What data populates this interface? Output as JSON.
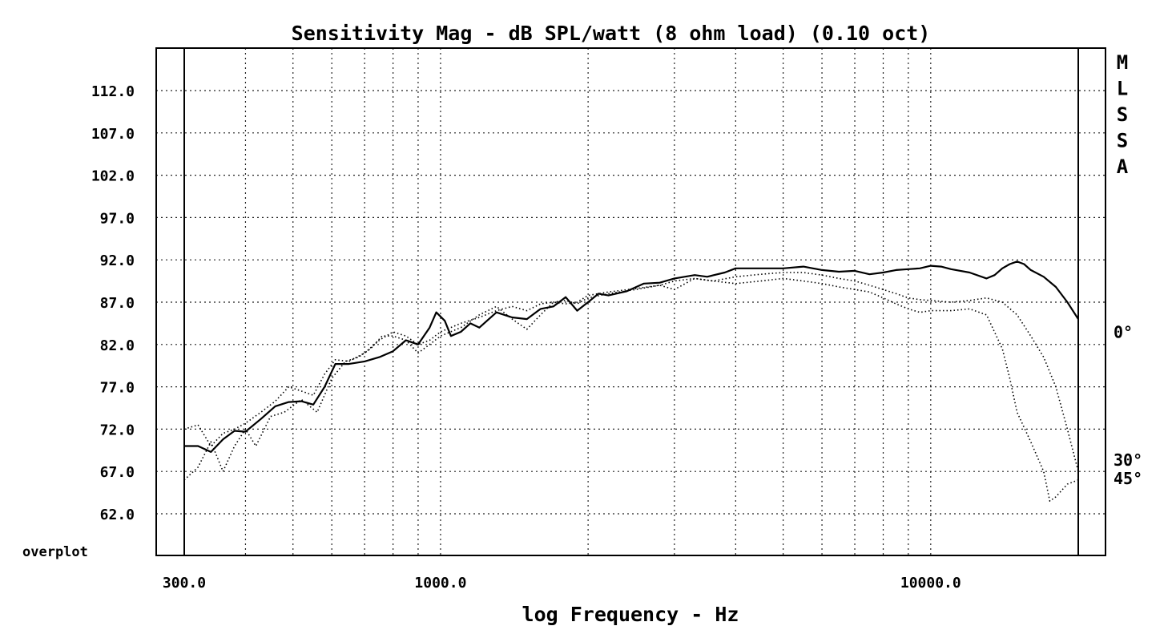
{
  "chart_data": {
    "type": "line",
    "title": "Sensitivity Mag - dB SPL/watt (8 ohm load) (0.10 oct)",
    "xlabel": "log Frequency - Hz",
    "ylabel": "",
    "x_scale": "log",
    "xlim": [
      300,
      20000
    ],
    "ylim": [
      57,
      117
    ],
    "grid": true,
    "x_tick_labels": [
      "300.0",
      "1000.0",
      "10000.0"
    ],
    "y_tick_labels": [
      "112.0",
      "107.0",
      "102.0",
      "97.0",
      "92.0",
      "87.0",
      "82.0",
      "77.0",
      "72.0",
      "67.0",
      "62.0"
    ],
    "corner_label": "overplot",
    "brand_letters": [
      "M",
      "L",
      "S",
      "S",
      "A"
    ],
    "series": [
      {
        "label": "0°",
        "style": "solid",
        "points": [
          [
            300,
            70.0
          ],
          [
            320,
            70.0
          ],
          [
            340,
            69.3
          ],
          [
            360,
            70.8
          ],
          [
            380,
            71.8
          ],
          [
            400,
            71.7
          ],
          [
            430,
            73.2
          ],
          [
            460,
            74.7
          ],
          [
            490,
            75.2
          ],
          [
            520,
            75.3
          ],
          [
            550,
            74.9
          ],
          [
            580,
            77.0
          ],
          [
            610,
            79.7
          ],
          [
            650,
            79.7
          ],
          [
            700,
            80.0
          ],
          [
            750,
            80.5
          ],
          [
            800,
            81.2
          ],
          [
            850,
            82.5
          ],
          [
            900,
            82.0
          ],
          [
            950,
            84.0
          ],
          [
            980,
            85.8
          ],
          [
            1020,
            84.8
          ],
          [
            1050,
            83.0
          ],
          [
            1100,
            83.5
          ],
          [
            1150,
            84.5
          ],
          [
            1200,
            84.0
          ],
          [
            1300,
            85.8
          ],
          [
            1400,
            85.2
          ],
          [
            1500,
            85.0
          ],
          [
            1600,
            86.2
          ],
          [
            1700,
            86.5
          ],
          [
            1800,
            87.6
          ],
          [
            1900,
            86.0
          ],
          [
            2000,
            87.0
          ],
          [
            2100,
            88.0
          ],
          [
            2200,
            87.8
          ],
          [
            2400,
            88.3
          ],
          [
            2600,
            89.2
          ],
          [
            2800,
            89.3
          ],
          [
            3000,
            89.8
          ],
          [
            3300,
            90.2
          ],
          [
            3500,
            90.0
          ],
          [
            3800,
            90.5
          ],
          [
            4000,
            91.0
          ],
          [
            4500,
            91.0
          ],
          [
            5000,
            91.0
          ],
          [
            5500,
            91.2
          ],
          [
            6000,
            90.8
          ],
          [
            6500,
            90.6
          ],
          [
            7000,
            90.7
          ],
          [
            7500,
            90.3
          ],
          [
            8000,
            90.5
          ],
          [
            8500,
            90.8
          ],
          [
            9000,
            90.9
          ],
          [
            9500,
            91.0
          ],
          [
            10000,
            91.3
          ],
          [
            10500,
            91.2
          ],
          [
            11000,
            90.9
          ],
          [
            12000,
            90.5
          ],
          [
            13000,
            89.8
          ],
          [
            13500,
            90.2
          ],
          [
            14000,
            91.0
          ],
          [
            14500,
            91.5
          ],
          [
            15000,
            91.8
          ],
          [
            15500,
            91.5
          ],
          [
            16000,
            90.8
          ],
          [
            17000,
            90.0
          ],
          [
            18000,
            88.8
          ],
          [
            19000,
            87.0
          ],
          [
            20000,
            85.0
          ]
        ]
      },
      {
        "label": "30°",
        "style": "dotted",
        "points": [
          [
            300,
            72.0
          ],
          [
            320,
            72.5
          ],
          [
            340,
            70.0
          ],
          [
            360,
            71.5
          ],
          [
            380,
            72.0
          ],
          [
            400,
            72.7
          ],
          [
            430,
            74.0
          ],
          [
            460,
            75.3
          ],
          [
            490,
            77.0
          ],
          [
            520,
            76.5
          ],
          [
            550,
            76.0
          ],
          [
            580,
            78.5
          ],
          [
            610,
            80.2
          ],
          [
            650,
            80.0
          ],
          [
            700,
            81.0
          ],
          [
            750,
            82.5
          ],
          [
            800,
            83.5
          ],
          [
            850,
            83.0
          ],
          [
            900,
            82.0
          ],
          [
            950,
            82.5
          ],
          [
            1000,
            83.5
          ],
          [
            1100,
            84.5
          ],
          [
            1200,
            85.2
          ],
          [
            1300,
            86.0
          ],
          [
            1400,
            86.5
          ],
          [
            1500,
            86.0
          ],
          [
            1600,
            86.8
          ],
          [
            1700,
            87.0
          ],
          [
            1800,
            87.2
          ],
          [
            1900,
            86.8
          ],
          [
            2000,
            87.5
          ],
          [
            2200,
            88.0
          ],
          [
            2500,
            88.5
          ],
          [
            2800,
            89.0
          ],
          [
            3000,
            89.5
          ],
          [
            3300,
            89.8
          ],
          [
            3600,
            89.5
          ],
          [
            4000,
            90.0
          ],
          [
            4500,
            90.3
          ],
          [
            5000,
            90.5
          ],
          [
            5500,
            90.5
          ],
          [
            6000,
            90.2
          ],
          [
            6500,
            89.8
          ],
          [
            7000,
            89.5
          ],
          [
            7500,
            89.0
          ],
          [
            8000,
            88.5
          ],
          [
            8500,
            88.0
          ],
          [
            9000,
            87.5
          ],
          [
            9500,
            87.3
          ],
          [
            10000,
            87.2
          ],
          [
            11000,
            87.0
          ],
          [
            12000,
            87.2
          ],
          [
            13000,
            87.5
          ],
          [
            14000,
            87.0
          ],
          [
            15000,
            85.5
          ],
          [
            16000,
            83.0
          ],
          [
            17000,
            80.5
          ],
          [
            18000,
            77.0
          ],
          [
            19000,
            72.0
          ],
          [
            20000,
            67.0
          ]
        ]
      },
      {
        "label": "45°",
        "style": "dotted",
        "points": [
          [
            300,
            66.0
          ],
          [
            320,
            67.5
          ],
          [
            340,
            70.5
          ],
          [
            360,
            67.0
          ],
          [
            380,
            70.0
          ],
          [
            400,
            72.0
          ],
          [
            420,
            70.0
          ],
          [
            450,
            73.5
          ],
          [
            480,
            74.0
          ],
          [
            520,
            75.5
          ],
          [
            560,
            74.0
          ],
          [
            600,
            78.0
          ],
          [
            640,
            80.0
          ],
          [
            680,
            80.5
          ],
          [
            720,
            81.5
          ],
          [
            760,
            83.0
          ],
          [
            800,
            83.0
          ],
          [
            850,
            82.5
          ],
          [
            900,
            81.0
          ],
          [
            950,
            82.0
          ],
          [
            1000,
            83.0
          ],
          [
            1100,
            84.0
          ],
          [
            1200,
            85.5
          ],
          [
            1300,
            86.5
          ],
          [
            1400,
            85.0
          ],
          [
            1500,
            83.8
          ],
          [
            1600,
            85.5
          ],
          [
            1700,
            87.0
          ],
          [
            1800,
            86.8
          ],
          [
            1900,
            87.0
          ],
          [
            2000,
            87.8
          ],
          [
            2200,
            88.2
          ],
          [
            2500,
            88.6
          ],
          [
            2800,
            89.0
          ],
          [
            3000,
            88.5
          ],
          [
            3300,
            89.8
          ],
          [
            3600,
            89.5
          ],
          [
            4000,
            89.2
          ],
          [
            4500,
            89.5
          ],
          [
            5000,
            89.8
          ],
          [
            5500,
            89.5
          ],
          [
            6000,
            89.2
          ],
          [
            6500,
            88.8
          ],
          [
            7000,
            88.5
          ],
          [
            7500,
            88.2
          ],
          [
            8000,
            87.5
          ],
          [
            8500,
            86.8
          ],
          [
            9000,
            86.2
          ],
          [
            9500,
            85.8
          ],
          [
            10000,
            86.0
          ],
          [
            11000,
            86.0
          ],
          [
            12000,
            86.2
          ],
          [
            13000,
            85.5
          ],
          [
            14000,
            81.5
          ],
          [
            14500,
            78.0
          ],
          [
            15000,
            74.0
          ],
          [
            16000,
            70.5
          ],
          [
            17000,
            67.0
          ],
          [
            17500,
            63.5
          ],
          [
            18000,
            64.0
          ],
          [
            19000,
            65.5
          ],
          [
            20000,
            66.0
          ]
        ]
      }
    ]
  }
}
